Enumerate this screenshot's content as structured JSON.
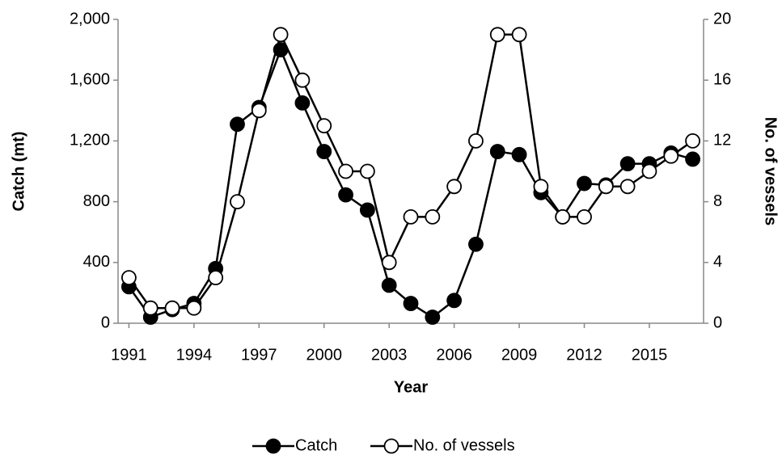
{
  "chart_data": {
    "type": "line",
    "x_label": "Year",
    "y_label": "Catch (mt)",
    "y2_label": "No. of vessels",
    "x": [
      1991,
      1992,
      1993,
      1994,
      1995,
      1996,
      1997,
      1998,
      1999,
      2000,
      2001,
      2002,
      2003,
      2004,
      2005,
      2006,
      2007,
      2008,
      2009,
      2010,
      2011,
      2012,
      2013,
      2014,
      2015,
      2016,
      2017
    ],
    "series": [
      {
        "name": "Catch",
        "color": "#000000",
        "marker_fill": "#000000",
        "values": [
          240,
          40,
          90,
          130,
          360,
          1310,
          1420,
          1800,
          1450,
          1130,
          845,
          745,
          250,
          130,
          40,
          150,
          520,
          1130,
          1110,
          860,
          700,
          920,
          910,
          1050,
          1050,
          1120,
          1080
        ]
      },
      {
        "name": "No. of vessels",
        "color": "#000000",
        "marker_fill": "#ffffff",
        "axis": "y2",
        "values": [
          3,
          1,
          1,
          1,
          3,
          8,
          14,
          19,
          16,
          13,
          10,
          10,
          4,
          7,
          7,
          9,
          12,
          19,
          19,
          9,
          7,
          7,
          9,
          9,
          10,
          11,
          12
        ]
      }
    ],
    "xlim": [
      1990.5,
      2017.5
    ],
    "xticks": [
      1991,
      1994,
      1997,
      2000,
      2003,
      2006,
      2009,
      2012,
      2015
    ],
    "ylim": [
      0,
      2000
    ],
    "yticks": [
      0,
      400,
      800,
      {
        "value": 1200,
        "label": "1,200"
      },
      {
        "value": 1600,
        "label": "1,600"
      },
      {
        "value": 2000,
        "label": "2,000"
      }
    ],
    "y2lim": [
      0,
      20
    ],
    "y2ticks": [
      0,
      4,
      8,
      12,
      16,
      20
    ],
    "legend": "bottom",
    "grid": false
  }
}
